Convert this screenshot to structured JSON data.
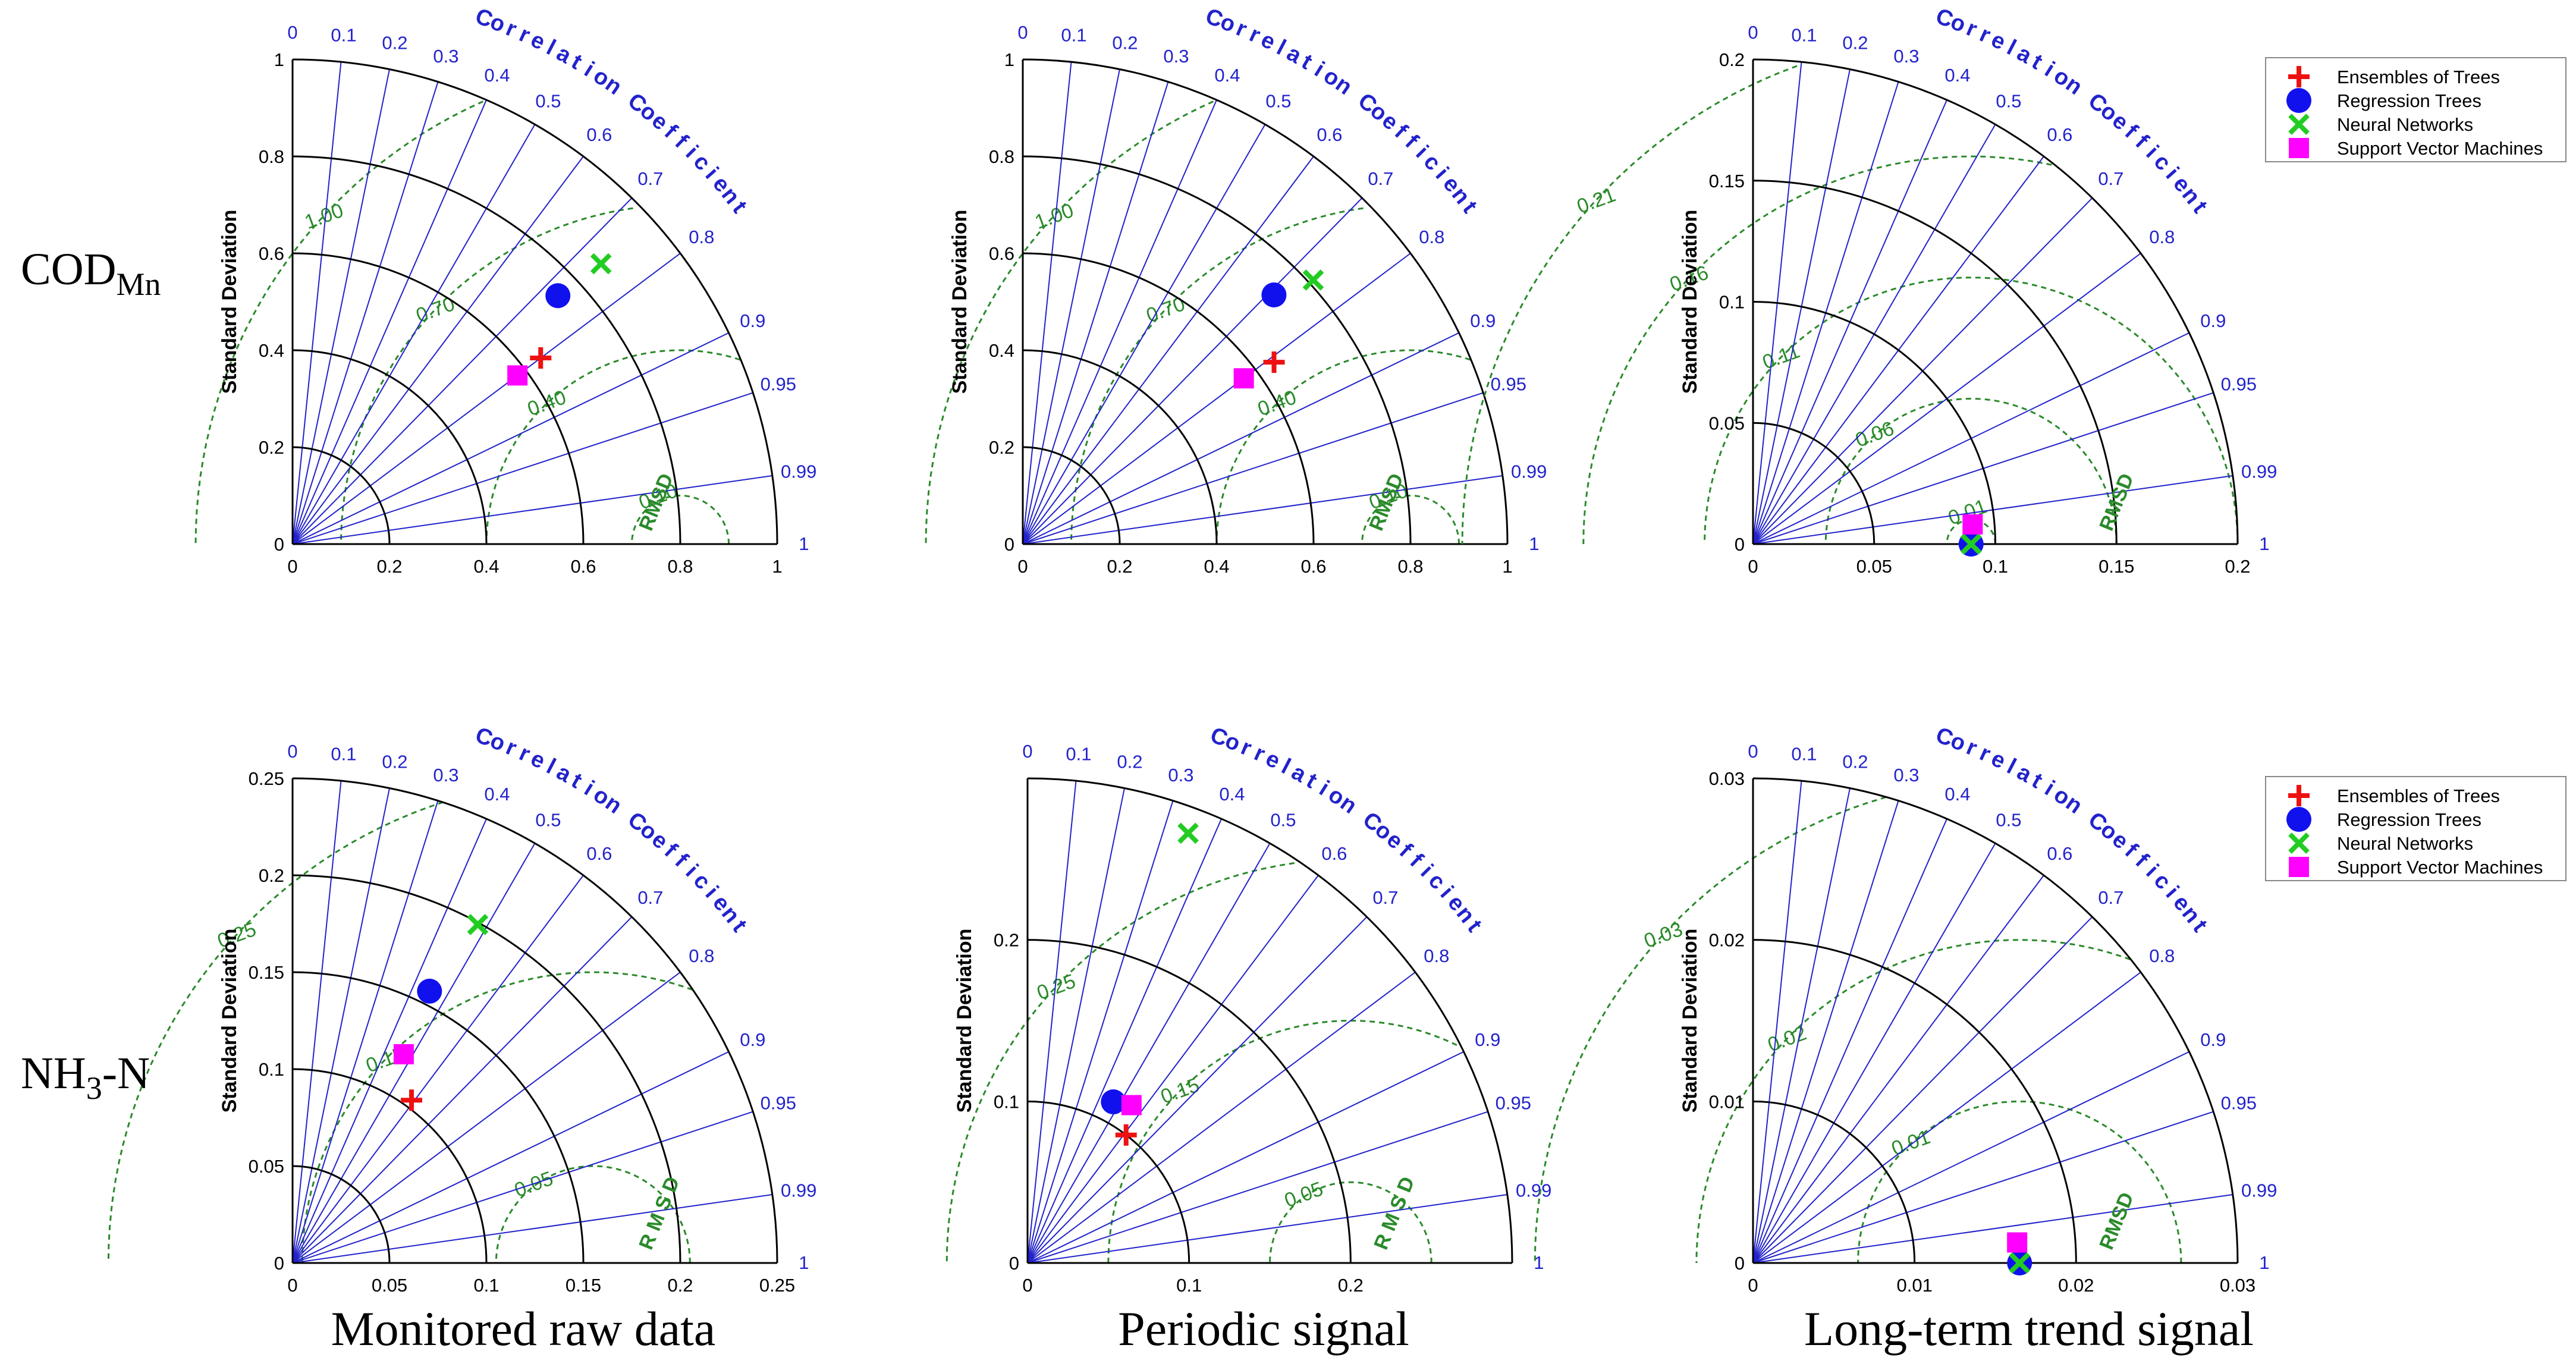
{
  "figure": {
    "row_labels": [
      {
        "main": "COD",
        "sub": "Mn",
        "tail": ""
      },
      {
        "main": "NH",
        "sub": "3",
        "tail": "-N"
      }
    ],
    "column_labels": [
      "Monitored raw data",
      "Periodic signal",
      "Long-term trend signal"
    ],
    "colors": {
      "axis": "#000000",
      "corr": "#2222cc",
      "rmsd": "#2a8a2a",
      "red": "#ee1111",
      "blue": "#1111ee",
      "green": "#22cc22",
      "magenta": "#ff00ff"
    }
  },
  "legend": {
    "entries": [
      {
        "name": "Ensembles of Trees",
        "marker": "plus",
        "color": "#ee1111"
      },
      {
        "name": "Regression Trees",
        "marker": "circle",
        "color": "#1111ee"
      },
      {
        "name": "Neural Networks",
        "marker": "x",
        "color": "#22cc22"
      },
      {
        "name": "Support Vector Machines",
        "marker": "square",
        "color": "#ff00ff"
      }
    ]
  },
  "chart_data": [
    {
      "type": "taylor",
      "title": "COD_Mn — Monitored raw data",
      "ylabel": "Standard Deviation",
      "corr_label": "Correlation Coefficient",
      "rmsd_label": "RMSD",
      "max": 1,
      "ticks": [
        "0",
        "0.2",
        "0.4",
        "0.6",
        "0.8",
        "1"
      ],
      "tick_values": [
        0,
        0.2,
        0.4,
        0.6,
        0.8,
        1
      ],
      "arcs": [
        0.2,
        0.4,
        0.6,
        0.8,
        1
      ],
      "ref": 0.8,
      "rmsd_arcs": [
        0.1,
        0.4,
        0.7,
        1.0
      ],
      "rmsd_labels": [
        "0.10",
        "0.40",
        "0.70",
        "1.00"
      ],
      "show_legend": false,
      "points": [
        {
          "model": "Ensembles of Trees",
          "std": 0.64,
          "corr": 0.8
        },
        {
          "model": "Regression Trees",
          "std": 0.75,
          "corr": 0.73
        },
        {
          "model": "Neural Networks",
          "std": 0.86,
          "corr": 0.74
        },
        {
          "model": "Support Vector Machines",
          "std": 0.58,
          "corr": 0.8
        }
      ]
    },
    {
      "type": "taylor",
      "title": "COD_Mn — Periodic signal",
      "ylabel": "Standard Deviation",
      "corr_label": "Correlation Coefficient",
      "rmsd_label": "RMSD",
      "max": 1,
      "ticks": [
        "0",
        "0.2",
        "0.4",
        "0.6",
        "0.8",
        "1"
      ],
      "tick_values": [
        0,
        0.2,
        0.4,
        0.6,
        0.8,
        1
      ],
      "arcs": [
        0.2,
        0.4,
        0.6,
        0.8,
        1
      ],
      "ref": 0.8,
      "rmsd_arcs": [
        0.1,
        0.4,
        0.7,
        1.0
      ],
      "rmsd_labels": [
        "0.10",
        "0.40",
        "0.70",
        "1.00"
      ],
      "show_legend": false,
      "points": [
        {
          "model": "Ensembles of Trees",
          "std": 0.64,
          "corr": 0.81
        },
        {
          "model": "Regression Trees",
          "std": 0.73,
          "corr": 0.71
        },
        {
          "model": "Neural Networks",
          "std": 0.81,
          "corr": 0.74
        },
        {
          "model": "Support Vector Machines",
          "std": 0.57,
          "corr": 0.8
        }
      ]
    },
    {
      "type": "taylor",
      "title": "COD_Mn — Long-term trend signal",
      "ylabel": "Standard Deviation",
      "corr_label": "Correlation Coefficient",
      "rmsd_label": "RMSD",
      "max": 0.2,
      "ticks": [
        "0",
        "0.05",
        "0.1",
        "0.15",
        "0.2"
      ],
      "tick_values": [
        0,
        0.05,
        0.1,
        0.15,
        0.2
      ],
      "arcs": [
        0.05,
        0.1,
        0.15,
        0.2
      ],
      "ref": 0.09,
      "rmsd_arcs": [
        0.01,
        0.06,
        0.11,
        0.16,
        0.21
      ],
      "rmsd_labels": [
        "0.01",
        "0.06",
        "0.11",
        "0.16",
        "0.21"
      ],
      "show_legend": true,
      "points": [
        {
          "model": "Ensembles of Trees",
          "std": 0.09,
          "corr": 1.0
        },
        {
          "model": "Regression Trees",
          "std": 0.09,
          "corr": 1.0
        },
        {
          "model": "Neural Networks",
          "std": 0.09,
          "corr": 1.0
        },
        {
          "model": "Support Vector Machines",
          "std": 0.091,
          "corr": 0.996
        }
      ]
    },
    {
      "type": "taylor",
      "title": "NH3-N — Monitored raw data",
      "ylabel": "Standard Deviation",
      "corr_label": "Correlation Coefficient",
      "rmsd_label": "R M S D",
      "max": 0.25,
      "ticks": [
        "0",
        "0.05",
        "0.1",
        "0.15",
        "0.2",
        "0.25"
      ],
      "tick_values": [
        0,
        0.05,
        0.1,
        0.15,
        0.2,
        0.25
      ],
      "arcs": [
        0.05,
        0.1,
        0.15,
        0.2,
        0.25
      ],
      "ref": 0.155,
      "rmsd_arcs": [
        0.05,
        0.15,
        0.25
      ],
      "rmsd_labels": [
        "0.05",
        "0.15",
        "0.25"
      ],
      "show_legend": false,
      "points": [
        {
          "model": "Ensembles of Trees",
          "std": 0.104,
          "corr": 0.59
        },
        {
          "model": "Regression Trees",
          "std": 0.157,
          "corr": 0.45
        },
        {
          "model": "Neural Networks",
          "std": 0.199,
          "corr": 0.48
        },
        {
          "model": "Support Vector Machines",
          "std": 0.122,
          "corr": 0.47
        }
      ]
    },
    {
      "type": "taylor",
      "title": "NH3-N — Periodic signal",
      "ylabel": "Standard Deviation",
      "corr_label": "Correlation Coefficient",
      "rmsd_label": "R M S D",
      "max": 0.3,
      "ticks": [
        "0",
        "0.1",
        "0.2"
      ],
      "tick_values": [
        0,
        0.1,
        0.2
      ],
      "arcs": [
        0.1,
        0.2,
        0.3
      ],
      "ref": 0.2,
      "rmsd_arcs": [
        0.05,
        0.15,
        0.25
      ],
      "rmsd_labels": [
        "0.05",
        "0.15",
        "0.25"
      ],
      "show_legend": false,
      "points": [
        {
          "model": "Ensembles of Trees",
          "std": 0.1,
          "corr": 0.61
        },
        {
          "model": "Regression Trees",
          "std": 0.113,
          "corr": 0.47
        },
        {
          "model": "Neural Networks",
          "std": 0.284,
          "corr": 0.35
        },
        {
          "model": "Support Vector Machines",
          "std": 0.117,
          "corr": 0.55
        }
      ]
    },
    {
      "type": "taylor",
      "title": "NH3-N — Long-term trend signal",
      "ylabel": "Standard Deviation",
      "corr_label": "Correlation Coefficient",
      "rmsd_label": "RMSD",
      "max": 0.03,
      "ticks": [
        "0",
        "0.01",
        "0.02",
        "0.03"
      ],
      "tick_values": [
        0,
        0.01,
        0.02,
        0.03
      ],
      "arcs": [
        0.01,
        0.02,
        0.03
      ],
      "ref": 0.0165,
      "rmsd_arcs": [
        0.01,
        0.02,
        0.03
      ],
      "rmsd_labels": [
        "0.01",
        "0.02",
        "0.03"
      ],
      "show_legend": true,
      "points": [
        {
          "model": "Ensembles of Trees",
          "std": 0.0165,
          "corr": 1.0
        },
        {
          "model": "Regression Trees",
          "std": 0.0165,
          "corr": 1.0
        },
        {
          "model": "Neural Networks",
          "std": 0.0165,
          "corr": 1.0
        },
        {
          "model": "Support Vector Machines",
          "std": 0.0164,
          "corr": 0.997
        }
      ]
    }
  ],
  "corr_ticks": {
    "values": [
      0,
      0.1,
      0.2,
      0.3,
      0.4,
      0.5,
      0.6,
      0.7,
      0.8,
      0.9,
      0.95,
      0.99,
      1
    ],
    "labels": [
      "0",
      "0.1",
      "0.2",
      "0.3",
      "0.4",
      "0.5",
      "0.6",
      "0.7",
      "0.8",
      "0.9",
      "0.95",
      "0.99",
      "1"
    ]
  }
}
